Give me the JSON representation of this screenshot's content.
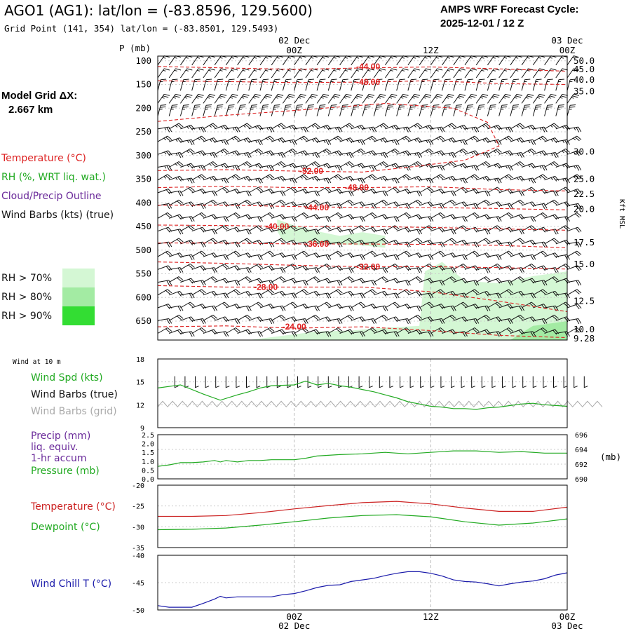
{
  "header": {
    "title": "AGO1 (AG1):  lat/lon = (-83.8596, 129.5600)",
    "subtitle": "Grid Point (141, 354) lat/lon = (-83.8501, 129.5493)",
    "cycle_line1": "AMPS WRF Forecast Cycle:",
    "cycle_line2": "2025-12-01 / 12  Z"
  },
  "legend": {
    "model_grid_label": "Model Grid ΔX:",
    "model_grid_value": "2.667 km",
    "temperature": "Temperature (°C)",
    "rh": "RH (%, WRT liq. wat.)",
    "cloud": "Cloud/Precip Outline",
    "wind": "Wind Barbs (kts) (true)",
    "rh70": "RH > 70%",
    "rh80": "RH > 80%",
    "rh90": "RH > 90%"
  },
  "colors": {
    "temperature": "#dd2222",
    "rh": "#22aa22",
    "cloud": "#6a2a9a",
    "wind_chill": "#1a1aaa",
    "grid_barbs": "#aaaaaa",
    "rh70": "#d4f7d4",
    "rh80": "#a3eba3",
    "rh90": "#33dd33"
  },
  "time_axis": {
    "top_labels": [
      {
        "hour": 12,
        "day": "02 Dec",
        "time": "00Z"
      },
      {
        "hour": 24,
        "day": "",
        "time": "12Z"
      },
      {
        "hour": 36,
        "day": "03 Dec",
        "time": "00Z"
      }
    ],
    "bottom_labels": [
      {
        "hour": 12,
        "time": "00Z",
        "day": "02 Dec"
      },
      {
        "hour": 24,
        "time": "12Z",
        "day": ""
      },
      {
        "hour": 36,
        "time": "00Z",
        "day": "03 Dec"
      }
    ],
    "range_hours": [
      0,
      36
    ]
  },
  "chart_data": [
    {
      "type": "cross-section",
      "ylabel": "P (mb)",
      "y_ticks": [
        100,
        150,
        200,
        250,
        300,
        350,
        400,
        450,
        500,
        550,
        600,
        650
      ],
      "ylim": [
        90,
        690
      ],
      "right_label": "Kft MSL",
      "right_ticks": [
        {
          "p": 100,
          "label": "50.0"
        },
        {
          "p": 118,
          "label": "45.0"
        },
        {
          "p": 140,
          "label": "40.0"
        },
        {
          "p": 165,
          "label": "35.0"
        },
        {
          "p": 292,
          "label": "30.0"
        },
        {
          "p": 350,
          "label": "25.0"
        },
        {
          "p": 382,
          "label": "22.5"
        },
        {
          "p": 414,
          "label": "20.0"
        },
        {
          "p": 484,
          "label": "17.5"
        },
        {
          "p": 530,
          "label": "15.0"
        },
        {
          "p": 608,
          "label": "12.5"
        },
        {
          "p": 668,
          "label": "10.0"
        },
        {
          "p": 687,
          "label": "9.28"
        }
      ],
      "temperature_contours": [
        {
          "label": "-44.00",
          "label_at": [
            18.5,
            112
          ],
          "points": [
            [
              0,
              112
            ],
            [
              6,
              115
            ],
            [
              12,
              118
            ],
            [
              18,
              115
            ],
            [
              24,
              113
            ],
            [
              30,
              117
            ],
            [
              36,
              122
            ]
          ]
        },
        {
          "label": "-48.00",
          "label_at": [
            18.5,
            145
          ],
          "points": [
            [
              0,
              142
            ],
            [
              6,
              144
            ],
            [
              12,
              146
            ],
            [
              18,
              145
            ],
            [
              24,
              142
            ],
            [
              30,
              148
            ],
            [
              36,
              150
            ]
          ]
        },
        {
          "label": "-52.00",
          "label_at": [
            13.5,
            333
          ],
          "points": [
            [
              0,
              332
            ],
            [
              6,
              330
            ],
            [
              12,
              333
            ],
            [
              18,
              335
            ],
            [
              22,
              325
            ],
            [
              27,
              310
            ],
            [
              30,
              280
            ],
            [
              29,
              230
            ],
            [
              26,
              200
            ],
            [
              20,
              190
            ],
            [
              12,
              205
            ],
            [
              6,
              215
            ],
            [
              0,
              228
            ]
          ]
        },
        {
          "label": "-48.00",
          "label_at": [
            17.5,
            368
          ],
          "points": [
            [
              0,
              368
            ],
            [
              6,
              365
            ],
            [
              12,
              368
            ],
            [
              18,
              368
            ],
            [
              24,
              366
            ],
            [
              30,
              372
            ],
            [
              36,
              375
            ]
          ]
        },
        {
          "label": "-44.00",
          "label_at": [
            14,
            410
          ],
          "points": [
            [
              0,
              405
            ],
            [
              6,
              405
            ],
            [
              12,
              408
            ],
            [
              18,
              410
            ],
            [
              24,
              410
            ],
            [
              30,
              412
            ],
            [
              36,
              415
            ]
          ]
        },
        {
          "label": "-40.00",
          "label_at": [
            10.5,
            450
          ],
          "points": [
            [
              0,
              447
            ],
            [
              6,
              448
            ],
            [
              12,
              450
            ],
            [
              18,
              450
            ],
            [
              24,
              452
            ],
            [
              30,
              455
            ],
            [
              36,
              458
            ]
          ]
        },
        {
          "label": "-36.00",
          "label_at": [
            14,
            487
          ],
          "points": [
            [
              0,
              485
            ],
            [
              6,
              485
            ],
            [
              12,
              487
            ],
            [
              18,
              487
            ],
            [
              24,
              488
            ],
            [
              30,
              490
            ],
            [
              36,
              495
            ]
          ]
        },
        {
          "label": "-32.00",
          "label_at": [
            18.5,
            535
          ],
          "points": [
            [
              0,
              525
            ],
            [
              6,
              528
            ],
            [
              12,
              532
            ],
            [
              18,
              535
            ],
            [
              24,
              535
            ],
            [
              30,
              537
            ],
            [
              36,
              540
            ]
          ]
        },
        {
          "label": "-28.00",
          "label_at": [
            9.5,
            578
          ],
          "points": [
            [
              0,
              575
            ],
            [
              6,
              578
            ],
            [
              12,
              578
            ],
            [
              18,
              578
            ],
            [
              24,
              588
            ],
            [
              30,
              608
            ],
            [
              36,
              630
            ]
          ]
        },
        {
          "label": "-24.00",
          "label_at": [
            12,
            662
          ],
          "points": [
            [
              0,
              662
            ],
            [
              6,
              660
            ],
            [
              12,
              665
            ],
            [
              18,
              662
            ],
            [
              24,
              670
            ],
            [
              30,
              680
            ],
            [
              36,
              685
            ]
          ]
        }
      ],
      "rh_regions": [
        {
          "level": "rh70",
          "points": [
            [
              10.5,
              435
            ],
            [
              12,
              448
            ],
            [
              14,
              460
            ],
            [
              16,
              470
            ],
            [
              18,
              462
            ],
            [
              20,
              470
            ],
            [
              20,
              495
            ],
            [
              18,
              490
            ],
            [
              14,
              485
            ],
            [
              11,
              480
            ],
            [
              10.5,
              460
            ]
          ]
        },
        {
          "level": "rh70",
          "points": [
            [
              8,
              690
            ],
            [
              14,
              672
            ],
            [
              17,
              670
            ],
            [
              20,
              664
            ],
            [
              23,
              660
            ],
            [
              23.5,
              545
            ],
            [
              25,
              525
            ],
            [
              27,
              565
            ],
            [
              30,
              570
            ],
            [
              33,
              555
            ],
            [
              36,
              545
            ],
            [
              36,
              690
            ]
          ]
        },
        {
          "level": "rh80",
          "points": [
            [
              31,
              690
            ],
            [
              33,
              660
            ],
            [
              36,
              650
            ],
            [
              36,
              690
            ]
          ]
        }
      ]
    },
    {
      "type": "line",
      "title": "Wind at 10 m",
      "ylim": [
        9,
        18
      ],
      "y_ticks": [
        9,
        12,
        15,
        18
      ],
      "series": [
        {
          "name": "Wind Spd (kts)",
          "color": "#22aa22",
          "x": [
            0,
            2,
            4,
            5.5,
            7,
            8,
            9,
            10,
            12,
            13,
            14,
            15,
            16,
            17,
            18,
            19,
            20,
            21,
            22,
            23,
            24,
            25,
            26,
            27,
            28,
            29,
            30,
            31,
            32,
            33,
            34,
            35,
            36
          ],
          "values": [
            14.2,
            14.6,
            13.4,
            12.6,
            13.3,
            13.7,
            14.2,
            14.5,
            14.6,
            15.1,
            14.6,
            14.8,
            14.5,
            14.3,
            14.0,
            13.7,
            13.3,
            12.9,
            12.4,
            12.1,
            11.8,
            11.7,
            11.5,
            11.5,
            11.4,
            11.6,
            11.7,
            11.9,
            12.1,
            12.2,
            12.0,
            11.9,
            11.8
          ]
        }
      ],
      "labels": [
        "Wind Spd (kts)",
        "Wind Barbs (true)",
        "Wind Barbs (grid)"
      ]
    },
    {
      "type": "line",
      "ylim_left": [
        0,
        2.5
      ],
      "y_ticks_left": [
        "0.0",
        "0.5",
        "1.0",
        "1.5",
        "2.0",
        "2.5"
      ],
      "ylim_right": [
        690,
        696
      ],
      "y_ticks_right": [
        690,
        692,
        694,
        696
      ],
      "right_unit": "(mb)",
      "labels": [
        "Precip (mm)",
        "liq. equiv.",
        "1-hr accum",
        "Pressure (mb)"
      ],
      "series": [
        {
          "name": "Pressure (mb)",
          "color": "#22aa22",
          "axis": "right",
          "x": [
            0,
            1,
            2,
            3,
            4,
            5,
            5.5,
            6,
            7,
            8,
            9,
            10,
            12,
            13,
            14,
            15,
            16,
            18,
            20,
            21,
            22,
            24,
            26,
            28,
            30,
            32,
            34,
            36
          ],
          "values": [
            691.7,
            691.9,
            692.2,
            692.2,
            692.3,
            692.5,
            692.3,
            692.5,
            692.3,
            692.5,
            692.5,
            692.6,
            692.6,
            692.8,
            693.1,
            693.2,
            693.3,
            693.4,
            693.6,
            693.5,
            693.4,
            693.6,
            693.8,
            693.8,
            693.6,
            693.7,
            693.5,
            693.5
          ]
        }
      ]
    },
    {
      "type": "line",
      "ylim": [
        -35,
        -20
      ],
      "y_ticks": [
        -35,
        -30,
        -25,
        -20
      ],
      "labels": [
        "Temperature (°C)",
        "Dewpoint (°C)"
      ],
      "series": [
        {
          "name": "Temperature (°C)",
          "color": "#cc2222",
          "x": [
            0,
            3,
            6,
            9,
            12,
            15,
            18,
            21,
            24,
            27,
            30,
            33,
            36
          ],
          "values": [
            -27.5,
            -27.5,
            -27.3,
            -26.6,
            -25.7,
            -24.9,
            -24.2,
            -23.9,
            -24.5,
            -25.5,
            -26.3,
            -26.3,
            -25.3
          ]
        },
        {
          "name": "Dewpoint (°C)",
          "color": "#22aa22",
          "x": [
            0,
            3,
            6,
            9,
            12,
            15,
            18,
            21,
            24,
            27,
            30,
            33,
            36
          ],
          "values": [
            -30.7,
            -30.6,
            -30.3,
            -29.6,
            -28.8,
            -27.9,
            -27.3,
            -27.1,
            -27.6,
            -28.8,
            -29.6,
            -29.1,
            -28.1
          ]
        }
      ]
    },
    {
      "type": "line",
      "ylim": [
        -50,
        -40
      ],
      "y_ticks": [
        -50,
        -45,
        -40
      ],
      "labels": [
        "Wind Chill T (°C)"
      ],
      "series": [
        {
          "name": "Wind Chill T (°C)",
          "color": "#1a1aaa",
          "x": [
            0,
            1,
            3,
            4,
            5,
            5.5,
            6,
            7,
            8,
            9,
            10,
            11,
            12,
            13,
            14,
            15,
            16,
            17,
            18,
            19,
            20,
            21,
            22,
            23,
            24,
            25,
            26,
            27,
            28,
            29,
            30,
            31,
            32,
            33,
            34,
            35,
            36
          ],
          "values": [
            -49.2,
            -49.5,
            -49.5,
            -48.8,
            -48.0,
            -47.5,
            -47.8,
            -47.6,
            -47.6,
            -47.6,
            -47.6,
            -47.2,
            -47.0,
            -46.5,
            -45.9,
            -45.5,
            -45.4,
            -44.8,
            -44.5,
            -44.2,
            -43.7,
            -43.3,
            -43.0,
            -43.0,
            -43.3,
            -43.8,
            -44.5,
            -44.8,
            -44.9,
            -45.2,
            -45.6,
            -45.2,
            -44.9,
            -44.7,
            -44.3,
            -43.6,
            -43.2
          ]
        }
      ]
    }
  ]
}
